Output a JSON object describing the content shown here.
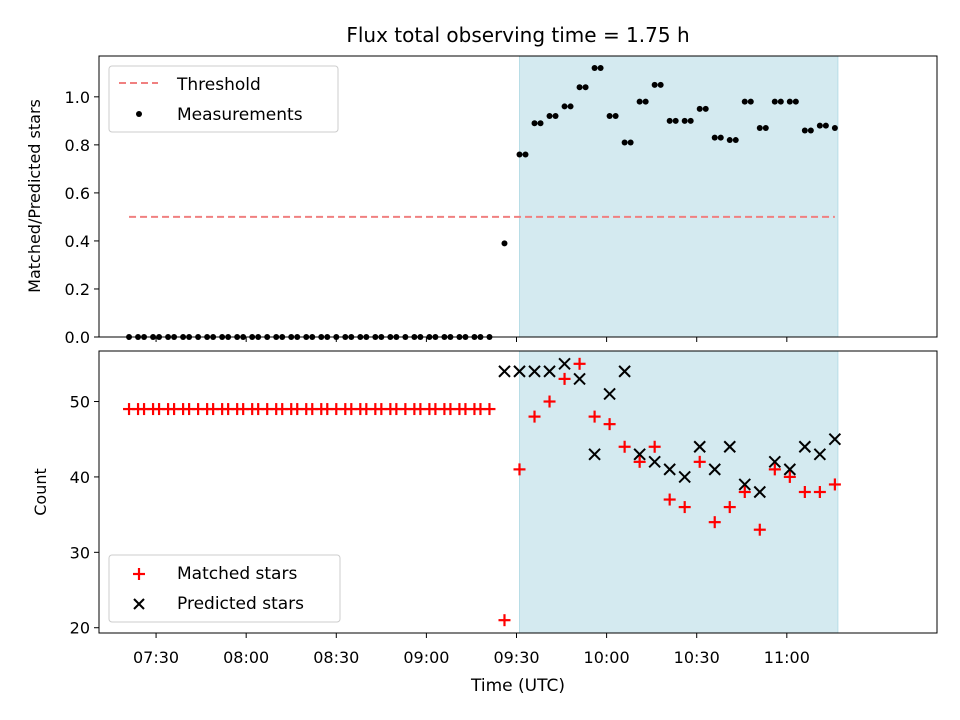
{
  "chart_data": [
    {
      "type": "scatter",
      "title": "Flux total observing time = 1.75 h",
      "xlabel": "",
      "ylabel": "Matched/Predicted stars",
      "ylim": [
        0,
        1.17
      ],
      "yticks": [
        "0.0",
        "0.2",
        "0.4",
        "0.6",
        "0.8",
        "1.0"
      ],
      "xticks": [
        "07:30",
        "08:00",
        "08:30",
        "09:00",
        "09:30",
        "10:00",
        "10:30",
        "11:00"
      ],
      "xlim": [
        "07:11",
        "11:50"
      ],
      "legend_position": "top-left",
      "highlight_span": {
        "start": "09:31",
        "end": "11:17",
        "color": "#d4eaf0"
      },
      "threshold": {
        "name": "Threshold",
        "value": 0.5,
        "x_start": "07:21",
        "x_end": "11:16",
        "color": "#f08080",
        "style": "dashed"
      },
      "series": [
        {
          "name": "Measurements",
          "color": "#000000",
          "marker": "dot",
          "x": [
            "07:21",
            "07:24",
            "07:26",
            "07:29",
            "07:31",
            "07:34",
            "07:36",
            "07:39",
            "07:41",
            "07:44",
            "07:47",
            "07:49",
            "07:52",
            "07:54",
            "07:57",
            "07:59",
            "08:02",
            "08:04",
            "08:07",
            "08:10",
            "08:12",
            "08:15",
            "08:17",
            "08:20",
            "08:22",
            "08:25",
            "08:27",
            "08:30",
            "08:33",
            "08:35",
            "08:38",
            "08:40",
            "08:43",
            "08:45",
            "08:48",
            "08:50",
            "08:53",
            "08:56",
            "08:58",
            "09:01",
            "09:03",
            "09:06",
            "09:08",
            "09:11",
            "09:13",
            "09:16",
            "09:18",
            "09:21",
            "09:26",
            "09:31",
            "09:33",
            "09:36",
            "09:38",
            "09:41",
            "09:43",
            "09:46",
            "09:48",
            "09:51",
            "09:53",
            "09:56",
            "09:58",
            "10:01",
            "10:03",
            "10:06",
            "10:08",
            "10:11",
            "10:13",
            "10:16",
            "10:18",
            "10:21",
            "10:23",
            "10:26",
            "10:28",
            "10:31",
            "10:33",
            "10:36",
            "10:38",
            "10:41",
            "10:43",
            "10:46",
            "10:48",
            "10:51",
            "10:53",
            "10:56",
            "10:58",
            "11:01",
            "11:03",
            "11:06",
            "11:08",
            "11:11",
            "11:13",
            "11:16"
          ],
          "values": [
            0,
            0,
            0,
            0,
            0,
            0,
            0,
            0,
            0,
            0,
            0,
            0,
            0,
            0,
            0,
            0,
            0,
            0,
            0,
            0,
            0,
            0,
            0,
            0,
            0,
            0,
            0,
            0,
            0,
            0,
            0,
            0,
            0,
            0,
            0,
            0,
            0,
            0,
            0,
            0,
            0,
            0,
            0,
            0,
            0,
            0,
            0,
            0,
            0.39,
            0.76,
            0.76,
            0.89,
            0.89,
            0.92,
            0.92,
            0.96,
            0.96,
            1.04,
            1.04,
            1.12,
            1.12,
            0.92,
            0.92,
            0.81,
            0.81,
            0.98,
            0.98,
            1.05,
            1.05,
            0.9,
            0.9,
            0.9,
            0.9,
            0.95,
            0.95,
            0.83,
            0.83,
            0.82,
            0.82,
            0.98,
            0.98,
            0.87,
            0.87,
            0.98,
            0.98,
            0.98,
            0.98,
            0.86,
            0.86,
            0.88,
            0.88,
            0.87
          ]
        }
      ]
    },
    {
      "type": "scatter",
      "title": "",
      "xlabel": "Time (UTC)",
      "ylabel": "Count",
      "ylim": [
        19.3,
        56.7
      ],
      "yticks": [
        "20",
        "30",
        "40",
        "50"
      ],
      "xticks": [
        "07:30",
        "08:00",
        "08:30",
        "09:00",
        "09:30",
        "10:00",
        "10:30",
        "11:00"
      ],
      "xlim": [
        "07:11",
        "11:50"
      ],
      "legend_position": "bottom-left",
      "highlight_span": {
        "start": "09:31",
        "end": "11:17",
        "color": "#d4eaf0"
      },
      "series": [
        {
          "name": "Matched stars",
          "color": "#ff0000",
          "marker": "plus",
          "x": [
            "07:21",
            "07:24",
            "07:26",
            "07:29",
            "07:31",
            "07:34",
            "07:36",
            "07:39",
            "07:41",
            "07:44",
            "07:47",
            "07:49",
            "07:52",
            "07:54",
            "07:57",
            "07:59",
            "08:02",
            "08:04",
            "08:07",
            "08:10",
            "08:12",
            "08:15",
            "08:17",
            "08:20",
            "08:22",
            "08:25",
            "08:27",
            "08:30",
            "08:33",
            "08:35",
            "08:38",
            "08:40",
            "08:43",
            "08:45",
            "08:48",
            "08:50",
            "08:53",
            "08:56",
            "08:58",
            "09:01",
            "09:03",
            "09:06",
            "09:08",
            "09:11",
            "09:13",
            "09:16",
            "09:18",
            "09:21",
            "09:26",
            "09:31",
            "09:36",
            "09:41",
            "09:46",
            "09:51",
            "09:56",
            "10:01",
            "10:06",
            "10:11",
            "10:16",
            "10:21",
            "10:26",
            "10:31",
            "10:36",
            "10:41",
            "10:46",
            "10:51",
            "10:56",
            "11:01",
            "11:06",
            "11:11",
            "11:16"
          ],
          "values": [
            49,
            49,
            49,
            49,
            49,
            49,
            49,
            49,
            49,
            49,
            49,
            49,
            49,
            49,
            49,
            49,
            49,
            49,
            49,
            49,
            49,
            49,
            49,
            49,
            49,
            49,
            49,
            49,
            49,
            49,
            49,
            49,
            49,
            49,
            49,
            49,
            49,
            49,
            49,
            49,
            49,
            49,
            49,
            49,
            49,
            49,
            49,
            49,
            21,
            41,
            48,
            50,
            53,
            55,
            48,
            47,
            44,
            42,
            44,
            37,
            36,
            42,
            34,
            36,
            38,
            33,
            41,
            40,
            38,
            38,
            39
          ]
        },
        {
          "name": "Predicted stars",
          "color": "#000000",
          "marker": "x",
          "x": [
            "09:26",
            "09:31",
            "09:36",
            "09:41",
            "09:46",
            "09:51",
            "09:56",
            "10:01",
            "10:06",
            "10:11",
            "10:16",
            "10:21",
            "10:26",
            "10:31",
            "10:36",
            "10:41",
            "10:46",
            "10:51",
            "10:56",
            "11:01",
            "11:06",
            "11:11",
            "11:16"
          ],
          "values": [
            54,
            54,
            54,
            54,
            55,
            53,
            43,
            51,
            54,
            43,
            42,
            41,
            40,
            44,
            41,
            44,
            39,
            38,
            42,
            41,
            44,
            43,
            45
          ]
        }
      ]
    }
  ]
}
